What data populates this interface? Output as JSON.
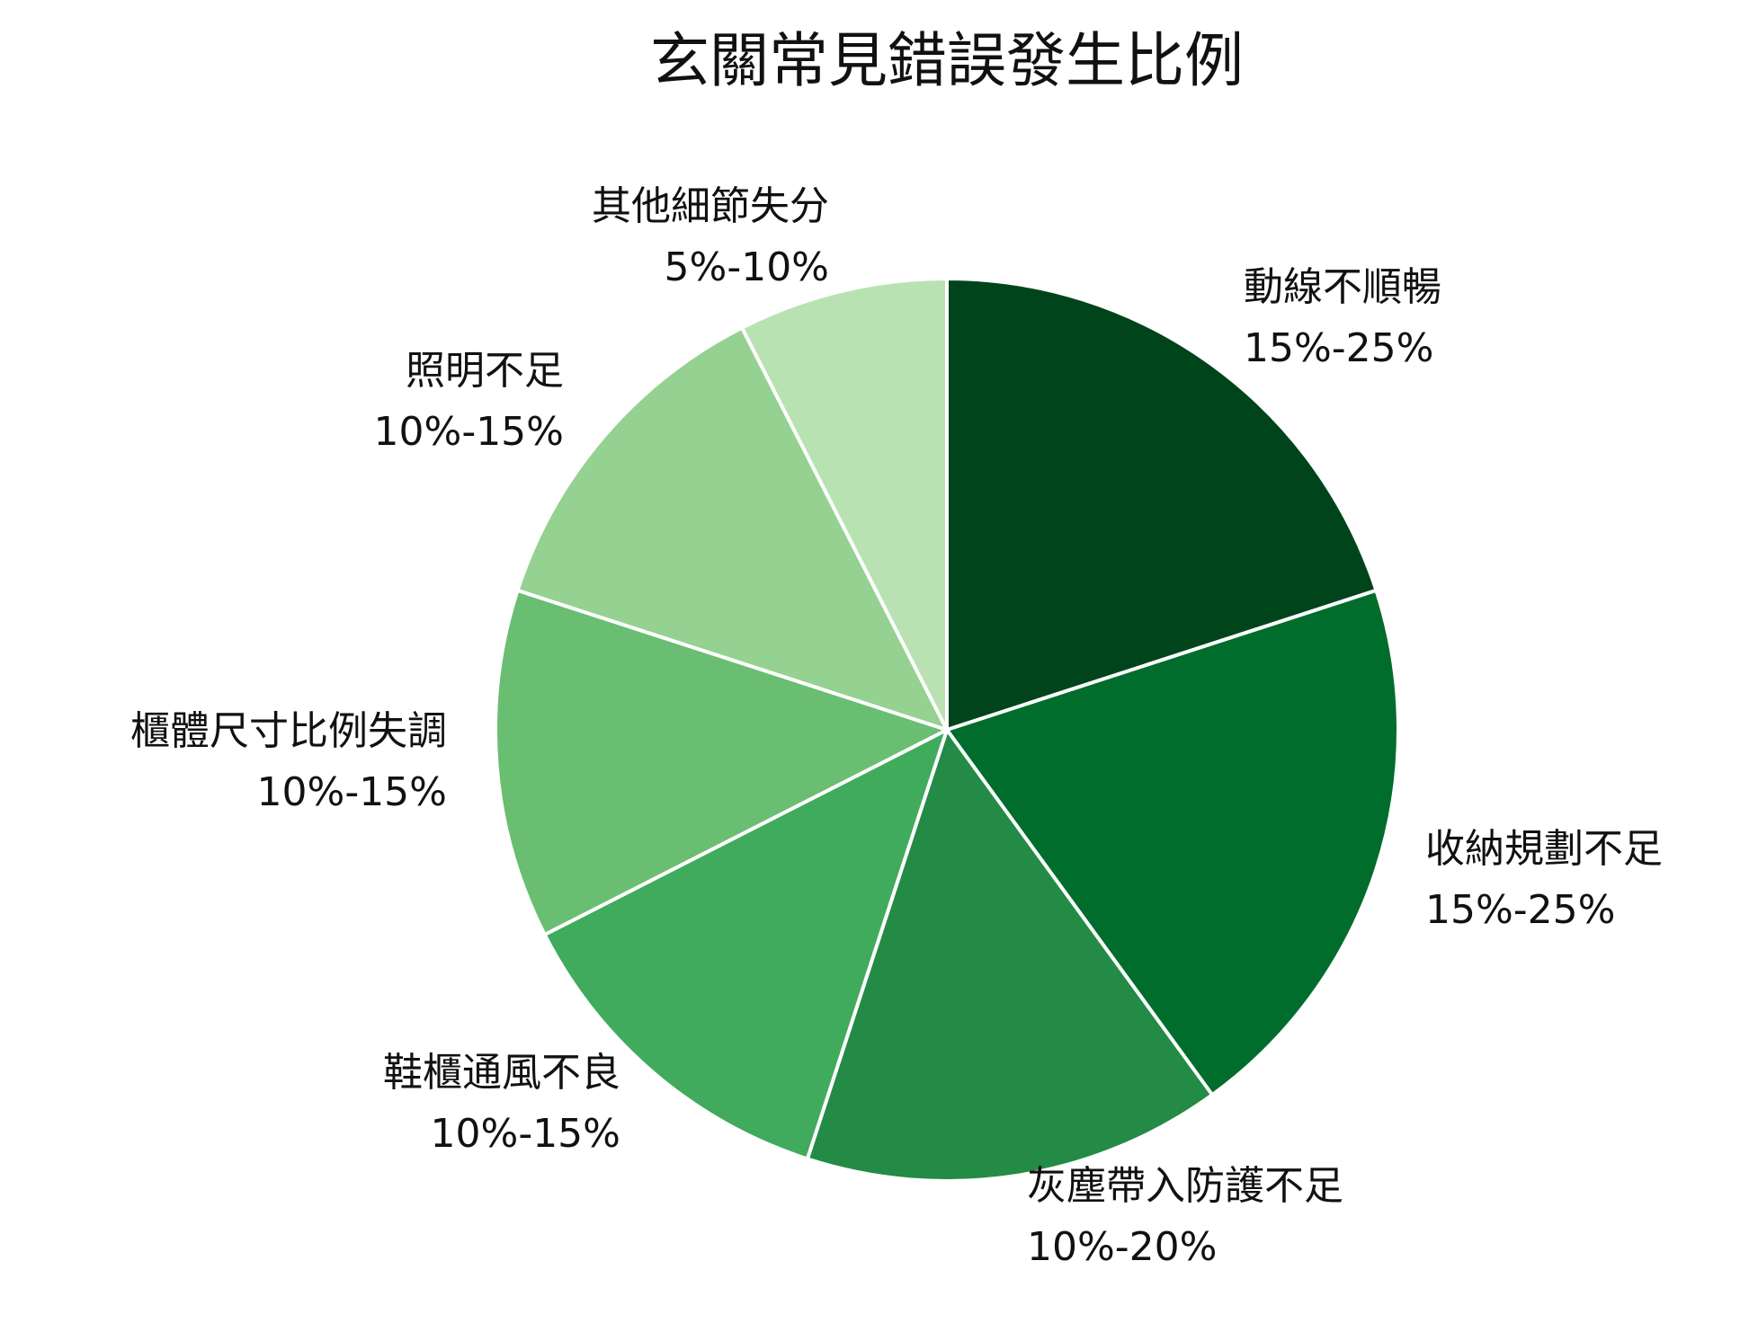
{
  "chart_data": {
    "type": "pie",
    "title": "玄關常見錯誤發生比例",
    "categories": [
      "動線不順暢",
      "收納規劃不足",
      "灰塵帶入防護不足",
      "鞋櫃通風不良",
      "櫃體尺寸比例失調",
      "照明不足",
      "其他細節失分"
    ],
    "values": [
      20,
      20,
      15,
      12.5,
      12.5,
      12.5,
      7.5
    ],
    "value_labels": [
      "15%-25%",
      "15%-25%",
      "10%-20%",
      "10%-15%",
      "10%-15%",
      "10%-15%",
      "5%-10%"
    ],
    "colors": [
      "#00441b",
      "#006d2c",
      "#238b45",
      "#41ab5d",
      "#6abe72",
      "#95d190",
      "#b9e2b3"
    ]
  }
}
